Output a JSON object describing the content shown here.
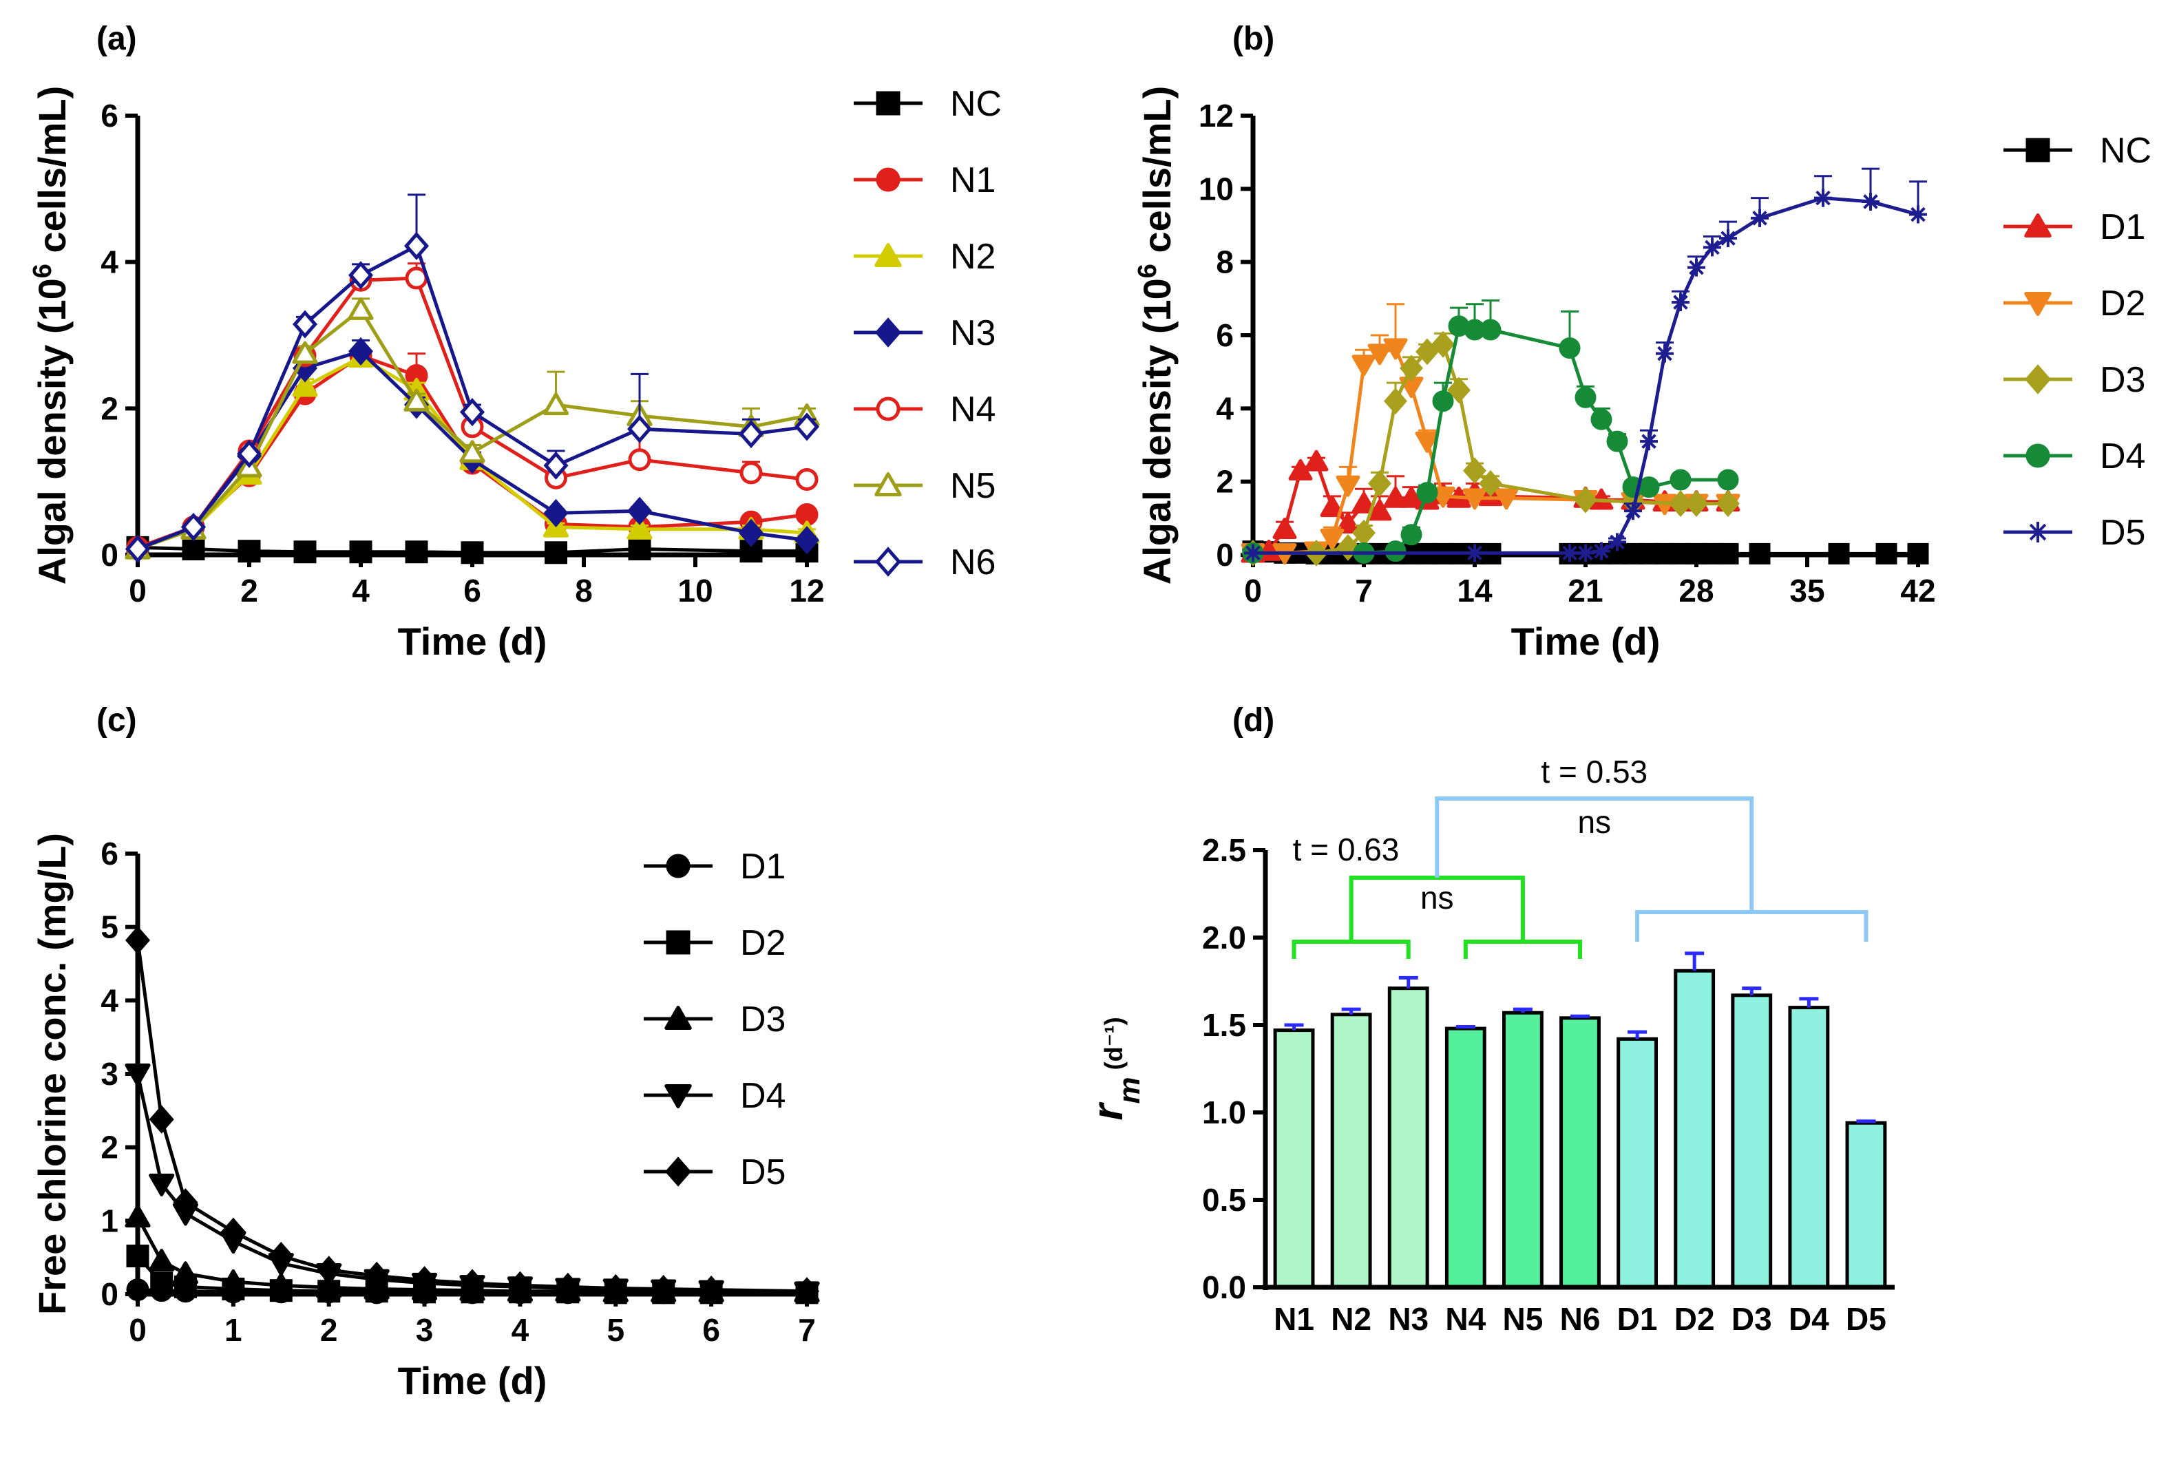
{
  "chart_data": [
    {
      "id": "a",
      "type": "line",
      "panel_label": "(a)",
      "title": "",
      "xlabel": "Time (d)",
      "ylabel_prefix": "Algal density (10",
      "ylabel_sup": "6",
      "ylabel_suffix": " cells/mL)",
      "xlim": [
        0,
        12
      ],
      "ylim": [
        0,
        6
      ],
      "xticks": [
        0,
        2,
        4,
        6,
        8,
        10,
        12
      ],
      "yticks": [
        0,
        2,
        4,
        6
      ],
      "xtick_labels": [
        "0",
        "2",
        "4",
        "6",
        "8",
        "10",
        "12"
      ],
      "ytick_labels": [
        "0",
        "2",
        "4",
        "6"
      ],
      "legend": "right",
      "x": [
        0,
        1,
        2,
        3,
        4,
        5,
        6,
        7.5,
        9,
        11,
        12
      ],
      "series": [
        {
          "name": "NC",
          "color": "#000000",
          "marker": "square-filled",
          "values": [
            0.1,
            0.08,
            0.05,
            0.04,
            0.04,
            0.04,
            0.03,
            0.03,
            0.08,
            0.05,
            0.05
          ],
          "err": [
            0.05,
            0.02,
            0,
            0,
            0,
            0,
            0,
            0,
            0.05,
            0,
            0
          ]
        },
        {
          "name": "N1",
          "color": "#e0201b",
          "marker": "circle-filled",
          "values": [
            0.08,
            0.38,
            1.08,
            2.2,
            2.72,
            2.45,
            1.25,
            0.42,
            0.38,
            0.45,
            0.55
          ],
          "err": [
            0,
            0,
            0,
            0.1,
            0.1,
            0.3,
            0.1,
            0.05,
            0.05,
            0.05,
            0.05
          ]
        },
        {
          "name": "N2",
          "color": "#d2cc00",
          "marker": "triangle-filled",
          "values": [
            0.08,
            0.35,
            1.1,
            2.3,
            2.7,
            2.25,
            1.3,
            0.38,
            0.35,
            0.35,
            0.3
          ],
          "err": [
            0,
            0,
            0,
            0.1,
            0.1,
            0.1,
            0.1,
            0.05,
            0.05,
            0.05,
            0.05
          ]
        },
        {
          "name": "N3",
          "color": "#17178c",
          "marker": "diamond-filled",
          "values": [
            0.08,
            0.38,
            1.35,
            2.55,
            2.78,
            2.05,
            1.3,
            0.57,
            0.6,
            0.3,
            0.2
          ],
          "err": [
            0,
            0,
            0,
            0.1,
            0.15,
            0.1,
            0.1,
            0.05,
            0.05,
            0.05,
            0.05
          ]
        },
        {
          "name": "N4",
          "color": "#e0201b",
          "marker": "circle-open",
          "values": [
            0.1,
            0.38,
            1.42,
            2.72,
            3.75,
            3.78,
            1.75,
            1.05,
            1.3,
            1.12,
            1.03
          ],
          "err": [
            0,
            0,
            0.05,
            0.1,
            0.1,
            0.2,
            0.15,
            0.15,
            0.4,
            0.15,
            0.05
          ]
        },
        {
          "name": "N5",
          "color": "#9e9e19",
          "marker": "triangle-open",
          "values": [
            0.08,
            0.35,
            1.2,
            2.75,
            3.35,
            2.1,
            1.4,
            2.05,
            1.9,
            1.75,
            1.9
          ],
          "err": [
            0,
            0,
            0,
            0.1,
            0.15,
            0.1,
            0.1,
            0.45,
            0.2,
            0.25,
            0.1
          ]
        },
        {
          "name": "N6",
          "color": "#17178c",
          "marker": "diamond-open",
          "values": [
            0.08,
            0.38,
            1.38,
            3.15,
            3.82,
            4.22,
            1.95,
            1.22,
            1.72,
            1.65,
            1.75
          ],
          "err": [
            0,
            0,
            0.05,
            0.1,
            0.15,
            0.7,
            0.1,
            0.2,
            0.75,
            0.2,
            0.1
          ]
        }
      ]
    },
    {
      "id": "b",
      "type": "line",
      "panel_label": "(b)",
      "title": "",
      "xlabel": "Time (d)",
      "ylabel_prefix": "Algal density (10",
      "ylabel_sup": "6",
      "ylabel_suffix": " cells/mL)",
      "xlim": [
        0,
        42
      ],
      "ylim": [
        0,
        12
      ],
      "xticks": [
        0,
        7,
        14,
        21,
        28,
        35,
        42
      ],
      "yticks": [
        0,
        2,
        4,
        6,
        8,
        10,
        12
      ],
      "xtick_labels": [
        "0",
        "7",
        "14",
        "21",
        "28",
        "35",
        "42"
      ],
      "ytick_labels": [
        "0",
        "2",
        "4",
        "6",
        "8",
        "10",
        "12"
      ],
      "legend": "right",
      "series": [
        {
          "name": "NC",
          "color": "#000000",
          "marker": "square-filled",
          "x": [
            0,
            1,
            2,
            3,
            4,
            5,
            6,
            7,
            8,
            9,
            10,
            11,
            12,
            13,
            14,
            15,
            20,
            21,
            22,
            23,
            24,
            25,
            26,
            27,
            28,
            29,
            30,
            32,
            37,
            40,
            42
          ],
          "values": [
            0.1,
            0.08,
            0.05,
            0.05,
            0.03,
            0.03,
            0.03,
            0.03,
            0.03,
            0.03,
            0.03,
            0.03,
            0.03,
            0.03,
            0.03,
            0.03,
            0.03,
            0.03,
            0.03,
            0.03,
            0.03,
            0.03,
            0.03,
            0.03,
            0.03,
            0.03,
            0.03,
            0.03,
            0.03,
            0.03,
            0.03
          ],
          "err": []
        },
        {
          "name": "D1",
          "color": "#e0201b",
          "marker": "triangle-filled",
          "x": [
            0,
            1,
            2,
            3,
            4,
            5,
            6,
            7,
            8,
            9,
            10,
            11,
            12,
            13,
            14,
            15,
            21,
            22,
            24,
            26,
            28,
            30
          ],
          "values": [
            0.05,
            0.1,
            0.7,
            2.3,
            2.55,
            1.3,
            0.85,
            1.4,
            1.2,
            1.55,
            1.55,
            1.5,
            1.65,
            1.55,
            1.7,
            1.6,
            1.55,
            1.5,
            1.5,
            1.45,
            1.45,
            1.45
          ],
          "err": [
            0,
            0,
            0.2,
            0.1,
            0.1,
            0.3,
            0.3,
            0.4,
            0.4,
            0.6,
            0.3,
            0.15,
            0.3,
            0.2,
            0.25,
            0.2,
            0.15,
            0.1,
            0.1,
            0.1,
            0.1,
            0.1
          ]
        },
        {
          "name": "D2",
          "color": "#f0841d",
          "marker": "triangle-down-filled",
          "x": [
            0,
            2,
            4,
            5,
            6,
            7,
            8,
            9,
            10,
            11,
            12,
            14,
            16,
            21,
            24,
            26,
            28,
            30
          ],
          "values": [
            0.05,
            0.05,
            0.1,
            0.45,
            1.9,
            5.2,
            5.5,
            5.65,
            4.6,
            3.1,
            1.6,
            1.55,
            1.55,
            1.5,
            1.45,
            1.4,
            1.4,
            1.4
          ],
          "err": [
            0,
            0,
            0,
            0.3,
            0.5,
            0.4,
            0.5,
            1.2,
            0.5,
            0.3,
            0.2,
            0.15,
            0.1,
            0.1,
            0.1,
            0.1,
            0.1,
            0.1
          ]
        },
        {
          "name": "D3",
          "color": "#a9a11e",
          "marker": "diamond-filled",
          "x": [
            0,
            4,
            6,
            7,
            8,
            9,
            10,
            11,
            12,
            13,
            14,
            15,
            21,
            24,
            27,
            28,
            30
          ],
          "values": [
            0.05,
            0.05,
            0.2,
            0.6,
            1.95,
            4.2,
            5.1,
            5.55,
            5.75,
            4.5,
            2.3,
            1.95,
            1.5,
            1.45,
            1.4,
            1.4,
            1.4
          ],
          "err": [
            0,
            0,
            0.1,
            0.2,
            0.3,
            0.5,
            0.3,
            0.2,
            0.3,
            0.3,
            0.2,
            0.2,
            0.1,
            0.1,
            0.1,
            0.1,
            0.1
          ]
        },
        {
          "name": "D4",
          "color": "#168a36",
          "marker": "circle-filled",
          "x": [
            0,
            7,
            9,
            10,
            11,
            12,
            13,
            14,
            15,
            20,
            21,
            22,
            23,
            24,
            25,
            27,
            30
          ],
          "values": [
            0.05,
            0.05,
            0.1,
            0.55,
            1.7,
            4.2,
            6.25,
            6.15,
            6.15,
            5.65,
            4.3,
            3.7,
            3.1,
            1.85,
            1.85,
            2.05,
            2.05
          ],
          "err": [
            0,
            0,
            0,
            0.2,
            0.2,
            0.5,
            0.5,
            0.7,
            0.8,
            1.0,
            0.3,
            0.3,
            0.2,
            0.15,
            0.1,
            0.1,
            0.1
          ]
        },
        {
          "name": "D5",
          "color": "#1d1d8f",
          "marker": "asterisk",
          "x": [
            0,
            14,
            20,
            21,
            22,
            23,
            24,
            25,
            26,
            27,
            28,
            29,
            30,
            32,
            36,
            39,
            42
          ],
          "values": [
            0.05,
            0.05,
            0.05,
            0.05,
            0.1,
            0.35,
            1.2,
            3.1,
            5.5,
            6.9,
            7.85,
            8.4,
            8.65,
            9.2,
            9.75,
            9.65,
            9.3
          ],
          "err": [
            0,
            0,
            0,
            0,
            0,
            0.1,
            0.2,
            0.3,
            0.3,
            0.3,
            0.3,
            0.3,
            0.45,
            0.55,
            0.6,
            0.9,
            0.9
          ]
        }
      ]
    },
    {
      "id": "c",
      "type": "line",
      "panel_label": "(c)",
      "title": "",
      "xlabel": "Time (d)",
      "ylabel": "Free chlorine conc. (mg/L)",
      "xlim": [
        0,
        7
      ],
      "ylim": [
        0,
        6
      ],
      "xticks": [
        0,
        1,
        2,
        3,
        4,
        5,
        6,
        7
      ],
      "yticks": [
        0,
        1,
        2,
        3,
        4,
        5,
        6
      ],
      "xtick_labels": [
        "0",
        "1",
        "2",
        "3",
        "4",
        "5",
        "6",
        "7"
      ],
      "ytick_labels": [
        "0",
        "1",
        "2",
        "3",
        "4",
        "5",
        "6"
      ],
      "legend": "right",
      "x": [
        0,
        0.25,
        0.5,
        1,
        1.5,
        2,
        2.5,
        3,
        3.5,
        4,
        4.5,
        5,
        5.5,
        6,
        7
      ],
      "series": [
        {
          "name": "D1",
          "color": "#000000",
          "marker": "circle-filled",
          "values": [
            0.06,
            0.05,
            0.04,
            0.03,
            0.03,
            0.03,
            0.02,
            0.02,
            0.02,
            0.02,
            0.02,
            0.02,
            0.02,
            0.02,
            0.02
          ]
        },
        {
          "name": "D2",
          "color": "#000000",
          "marker": "square-filled",
          "values": [
            0.52,
            0.15,
            0.1,
            0.07,
            0.05,
            0.04,
            0.04,
            0.03,
            0.03,
            0.03,
            0.03,
            0.02,
            0.02,
            0.02,
            0.02
          ]
        },
        {
          "name": "D3",
          "color": "#000000",
          "marker": "triangle-filled",
          "values": [
            1.05,
            0.45,
            0.28,
            0.17,
            0.12,
            0.09,
            0.07,
            0.06,
            0.05,
            0.04,
            0.04,
            0.03,
            0.03,
            0.03,
            0.03
          ]
        },
        {
          "name": "D4",
          "color": "#000000",
          "marker": "triangle-down-filled",
          "values": [
            3.0,
            1.5,
            1.1,
            0.72,
            0.42,
            0.28,
            0.2,
            0.15,
            0.12,
            0.1,
            0.08,
            0.07,
            0.06,
            0.05,
            0.03
          ]
        },
        {
          "name": "D5",
          "color": "#000000",
          "marker": "diamond-filled",
          "values": [
            4.82,
            2.38,
            1.25,
            0.85,
            0.52,
            0.33,
            0.25,
            0.19,
            0.15,
            0.12,
            0.1,
            0.08,
            0.07,
            0.06,
            0.04
          ]
        }
      ]
    },
    {
      "id": "d",
      "type": "bar",
      "panel_label": "(d)",
      "title": "",
      "xlabel": "",
      "ylabel_main": "r",
      "ylabel_sub": "m",
      "ylabel_unit": "(d⁻¹)",
      "ylim": [
        0,
        2.5
      ],
      "yticks": [
        0,
        0.5,
        1.0,
        1.5,
        2.0,
        2.5
      ],
      "ytick_labels": [
        "0.0",
        "0.5",
        "1.0",
        "1.5",
        "2.0",
        "2.5"
      ],
      "categories": [
        "N1",
        "N2",
        "N3",
        "N4",
        "N5",
        "N6",
        "D1",
        "D2",
        "D3",
        "D4",
        "D5"
      ],
      "values": [
        1.47,
        1.56,
        1.71,
        1.48,
        1.57,
        1.54,
        1.42,
        1.81,
        1.67,
        1.6,
        0.94
      ],
      "err": [
        0.03,
        0.03,
        0.06,
        0.01,
        0.02,
        0.01,
        0.04,
        0.1,
        0.04,
        0.05,
        0.01
      ],
      "colors": [
        "#aef5c8",
        "#aef5c8",
        "#aef5c8",
        "#55f09e",
        "#55f09e",
        "#55f09e",
        "#8ef1df",
        "#8ef1df",
        "#8ef1df",
        "#8ef1df",
        "#8ef1df"
      ],
      "error_color": "#2b2bff",
      "annotations": {
        "green_t": "t = 0.63",
        "green_ns": "ns",
        "blue_t": "t = 0.53",
        "blue_ns": "ns",
        "green_color": "#22e022",
        "blue_color": "#8ec9f5"
      }
    }
  ]
}
